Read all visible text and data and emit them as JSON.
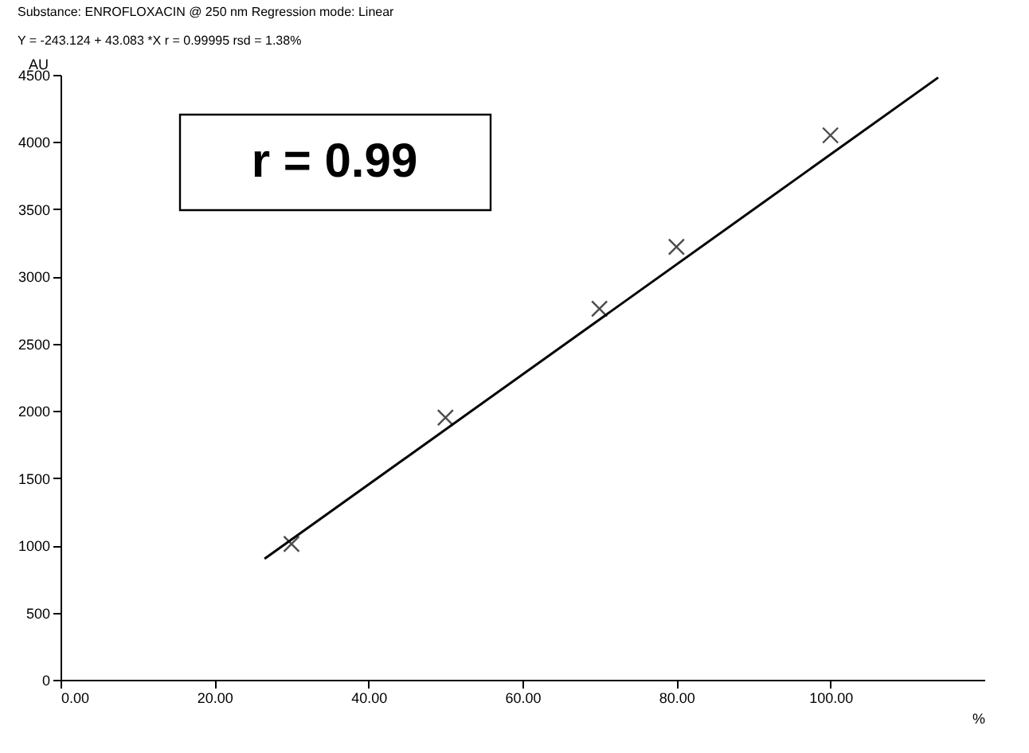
{
  "chart_data": {
    "type": "scatter",
    "title": "Substance: ENROFLOXACIN @ 250 nm Regression mode: Linear",
    "subtitle": "Y = -243.124 + 43.083 *X r = 0.99995 rsd = 1.38%",
    "xlabel": "%",
    "ylabel": "AU",
    "annotations": [
      "r = 0.99"
    ],
    "xlim": [
      0,
      120
    ],
    "xticks": [
      {
        "value": 0,
        "label": "0.00"
      },
      {
        "value": 20,
        "label": "20.00"
      },
      {
        "value": 40,
        "label": "40.00"
      },
      {
        "value": 60,
        "label": "60.00"
      },
      {
        "value": 80,
        "label": "80.00"
      },
      {
        "value": 100,
        "label": "100.00"
      }
    ],
    "ylim": [
      0,
      4500
    ],
    "yticks": [
      0,
      500,
      1000,
      1500,
      2000,
      2500,
      3000,
      3500,
      4000,
      4500
    ],
    "grid": false,
    "series": [
      {
        "color": "#000000",
        "marker": "cross",
        "x": [
          30,
          50,
          70,
          80,
          100
        ],
        "values": [
          1010,
          1950,
          2760,
          3220,
          4050
        ]
      },
      {
        "type": "line",
        "color": "#000000",
        "marker": "none",
        "line_style": "solid",
        "x": [
          26.5,
          114
        ],
        "values": [
          900,
          4480
        ]
      }
    ]
  }
}
